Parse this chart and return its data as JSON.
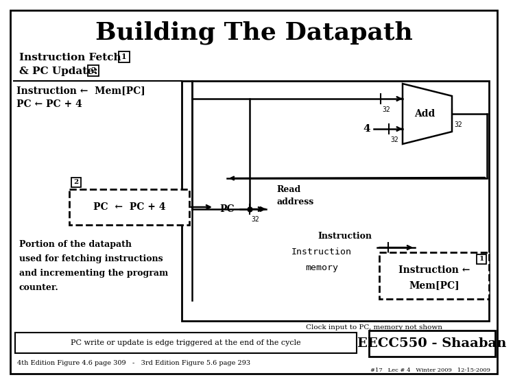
{
  "title": "Building The Datapath",
  "title_fontsize": 26,
  "bg_color": "#ffffff",
  "line_color": "#000000",
  "text_color": "#000000",
  "heading1": "Instruction Fetch",
  "heading1_num": "1",
  "heading2": "& PC Update:",
  "heading2_num": "2",
  "eq1": "Instruction ←  Mem[PC]",
  "eq2": "PC ← PC + 4",
  "dashed_label": "PC  ←  PC + 4",
  "dashed_num": "2",
  "box_label": "PC",
  "read_addr": "Read\naddress",
  "instruction_mem": "Instruction\nmemory",
  "instruction_out": "Instruction",
  "add_label": "Add",
  "bottom_note": "Clock input to PC, memory not shown",
  "bottom_box1": "PC write or update is edge triggered at the end of the cycle",
  "bottom_box2": "EECC550 - Shaaban",
  "bottom_text": "4th Edition Figure 4.6 page 309   -   3rd Edition Figure 5.6 page 293",
  "slide_num": "#17   Lec # 4   Winter 2009   12-15-2009",
  "instr_box_label": "Instruction ←\nMem[PC]",
  "instr_box_num": "1",
  "portion_text": "Portion of the datapath\nused for fetching instructions\nand incrementing the program\ncounter."
}
